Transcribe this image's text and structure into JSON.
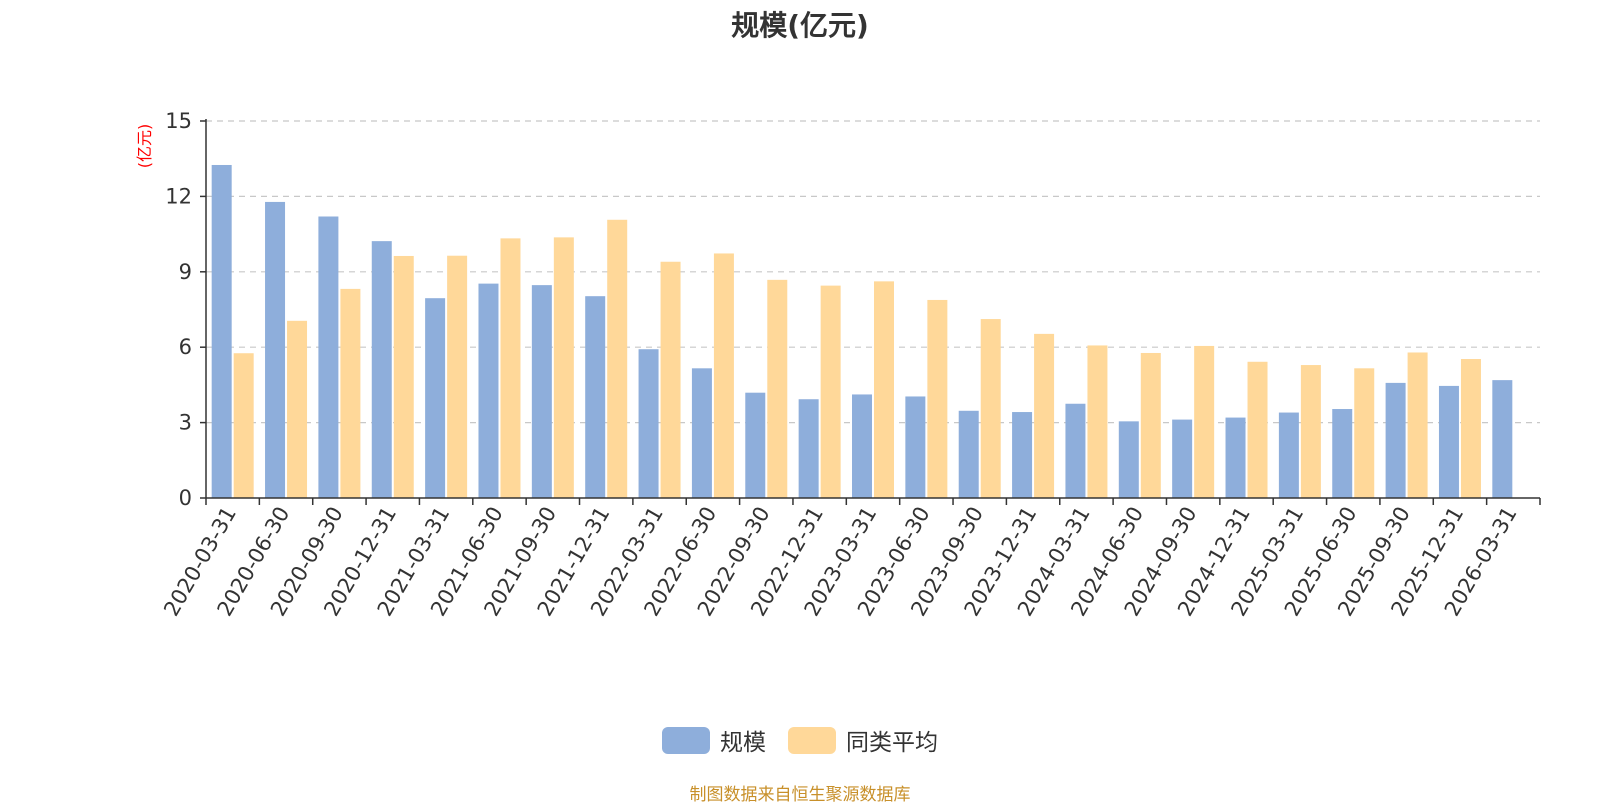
{
  "chart_data": {
    "type": "bar",
    "title": "规模(亿元)",
    "ylabel": "(亿元)",
    "ylim": [
      0,
      15
    ],
    "yticks": [
      0,
      3,
      6,
      9,
      12,
      15
    ],
    "grid": true,
    "legend_position": "bottom",
    "categories": [
      "2020-03-31",
      "2020-06-30",
      "2020-09-30",
      "2020-12-31",
      "2021-03-31",
      "2021-06-30",
      "2021-09-30",
      "2021-12-31",
      "2022-03-31",
      "2022-06-30",
      "2022-09-30",
      "2022-12-31",
      "2023-03-31",
      "2023-06-30",
      "2023-09-30",
      "2023-12-31",
      "2024-03-31",
      "2024-06-30",
      "2024-09-30",
      "2024-12-31",
      "2025-03-31",
      "2025-06-30",
      "2025-09-30",
      "2025-12-31",
      "2026-03-31"
    ],
    "series": [
      {
        "name": "规模",
        "color": "#8eaedb",
        "values": [
          13.25,
          11.78,
          11.2,
          10.22,
          7.95,
          8.53,
          8.47,
          8.03,
          5.92,
          5.16,
          4.19,
          3.93,
          4.12,
          4.04,
          3.47,
          3.42,
          3.75,
          3.05,
          3.12,
          3.2,
          3.4,
          3.54,
          4.58,
          4.46,
          4.69
        ]
      },
      {
        "name": "同类平均",
        "color": "#ffd899",
        "values": [
          5.76,
          7.05,
          8.32,
          9.63,
          9.64,
          10.33,
          10.37,
          11.07,
          9.4,
          9.73,
          8.68,
          8.45,
          8.62,
          7.88,
          7.12,
          6.53,
          6.07,
          5.77,
          6.05,
          5.42,
          5.29,
          5.16,
          5.79,
          5.53,
          null
        ]
      }
    ]
  },
  "source_note": "制图数据来自恒生聚源数据库"
}
